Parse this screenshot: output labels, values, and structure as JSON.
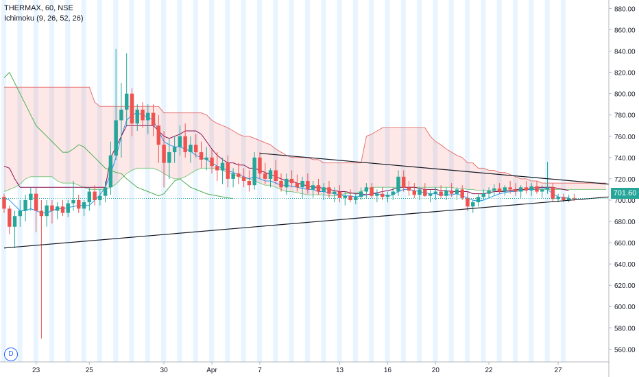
{
  "header": {
    "symbol_line": "THERMAX, 60, NSE",
    "indicator_line": "Ichimoku (9, 26, 52, 26)"
  },
  "badge": {
    "label": "D"
  },
  "price_tag": {
    "value": "701.60"
  },
  "colors": {
    "up": "#26a69a",
    "down": "#ef5350",
    "tenkan": "#2196f3",
    "kijun": "#880e4f",
    "chikou": "#4caf50",
    "spanA": "#81c784",
    "spanB": "#e57373",
    "cloudUp": "rgba(76,175,80,0.12)",
    "cloudDown": "rgba(244,67,54,0.12)",
    "session": "rgba(33,150,243,0.10)",
    "trendline": "#131722"
  },
  "chart_data": {
    "type": "candlestick",
    "ylim": [
      548,
      888
    ],
    "y_ticks": [
      "880.00",
      "860.00",
      "840.00",
      "820.00",
      "800.00",
      "780.00",
      "760.00",
      "740.00",
      "720.00",
      "700.00",
      "680.00",
      "660.00",
      "640.00",
      "620.00",
      "600.00",
      "580.00",
      "560.00"
    ],
    "x_ticks": [
      {
        "label": "23",
        "i": 6
      },
      {
        "label": "25",
        "i": 16
      },
      {
        "label": "30",
        "i": 30
      },
      {
        "label": "Apr",
        "i": 39
      },
      {
        "label": "7",
        "i": 48
      },
      {
        "label": "13",
        "i": 63
      },
      {
        "label": "16",
        "i": 72
      },
      {
        "label": "20",
        "i": 81
      },
      {
        "label": "22",
        "i": 91
      },
      {
        "label": "27",
        "i": 104
      }
    ],
    "last_price": 701.6,
    "candles": [
      [
        703,
        706,
        688,
        692
      ],
      [
        692,
        695,
        668,
        675
      ],
      [
        675,
        690,
        655,
        685
      ],
      [
        685,
        700,
        675,
        690
      ],
      [
        690,
        705,
        680,
        700
      ],
      [
        700,
        712,
        690,
        706
      ],
      [
        706,
        712,
        670,
        690
      ],
      [
        690,
        700,
        570,
        685
      ],
      [
        685,
        700,
        675,
        695
      ],
      [
        695,
        700,
        678,
        690
      ],
      [
        690,
        698,
        682,
        694
      ],
      [
        694,
        700,
        685,
        688
      ],
      [
        688,
        700,
        684,
        697
      ],
      [
        697,
        718,
        690,
        700
      ],
      [
        700,
        705,
        688,
        692
      ],
      [
        692,
        700,
        685,
        698
      ],
      [
        698,
        712,
        690,
        708
      ],
      [
        708,
        714,
        695,
        700
      ],
      [
        700,
        710,
        695,
        704
      ],
      [
        704,
        718,
        698,
        712
      ],
      [
        712,
        755,
        705,
        742
      ],
      [
        742,
        842,
        738,
        775
      ],
      [
        775,
        810,
        740,
        785
      ],
      [
        785,
        838,
        770,
        800
      ],
      [
        800,
        805,
        760,
        772
      ],
      [
        772,
        790,
        765,
        785
      ],
      [
        785,
        792,
        768,
        775
      ],
      [
        775,
        790,
        762,
        782
      ],
      [
        782,
        790,
        760,
        770
      ],
      [
        770,
        780,
        735,
        752
      ],
      [
        752,
        765,
        712,
        735
      ],
      [
        735,
        758,
        720,
        745
      ],
      [
        745,
        760,
        735,
        750
      ],
      [
        750,
        770,
        742,
        760
      ],
      [
        760,
        772,
        740,
        745
      ],
      [
        745,
        760,
        735,
        752
      ],
      [
        752,
        762,
        740,
        745
      ],
      [
        745,
        755,
        730,
        738
      ],
      [
        738,
        750,
        728,
        740
      ],
      [
        740,
        748,
        725,
        732
      ],
      [
        732,
        745,
        718,
        728
      ],
      [
        728,
        740,
        715,
        735
      ],
      [
        735,
        742,
        712,
        720
      ],
      [
        720,
        730,
        712,
        725
      ],
      [
        725,
        735,
        715,
        722
      ],
      [
        722,
        730,
        712,
        718
      ],
      [
        718,
        728,
        708,
        714
      ],
      [
        714,
        745,
        710,
        740
      ],
      [
        740,
        745,
        720,
        725
      ],
      [
        725,
        735,
        715,
        720
      ],
      [
        720,
        730,
        712,
        728
      ],
      [
        728,
        738,
        715,
        718
      ],
      [
        718,
        725,
        708,
        712
      ],
      [
        712,
        725,
        705,
        720
      ],
      [
        720,
        728,
        712,
        716
      ],
      [
        716,
        724,
        708,
        712
      ],
      [
        712,
        722,
        702,
        718
      ],
      [
        718,
        725,
        706,
        710
      ],
      [
        710,
        718,
        702,
        714
      ],
      [
        714,
        720,
        705,
        708
      ],
      [
        708,
        716,
        700,
        712
      ],
      [
        712,
        718,
        702,
        706
      ],
      [
        706,
        712,
        698,
        708
      ],
      [
        708,
        714,
        698,
        702
      ],
      [
        702,
        708,
        695,
        704
      ],
      [
        704,
        710,
        698,
        700
      ],
      [
        700,
        706,
        696,
        703
      ],
      [
        703,
        712,
        700,
        708
      ],
      [
        708,
        716,
        702,
        712
      ],
      [
        712,
        716,
        702,
        704
      ],
      [
        704,
        710,
        698,
        706
      ],
      [
        706,
        712,
        700,
        703
      ],
      [
        703,
        708,
        698,
        705
      ],
      [
        705,
        712,
        700,
        708
      ],
      [
        708,
        728,
        704,
        722
      ],
      [
        722,
        728,
        708,
        712
      ],
      [
        712,
        718,
        704,
        709
      ],
      [
        709,
        716,
        702,
        705
      ],
      [
        705,
        712,
        700,
        710
      ],
      [
        710,
        716,
        703,
        704
      ],
      [
        704,
        710,
        698,
        706
      ],
      [
        706,
        712,
        700,
        708
      ],
      [
        708,
        714,
        702,
        704
      ],
      [
        704,
        712,
        700,
        709
      ],
      [
        709,
        716,
        703,
        706
      ],
      [
        706,
        712,
        700,
        710
      ],
      [
        710,
        714,
        700,
        702
      ],
      [
        702,
        708,
        690,
        694
      ],
      [
        694,
        700,
        688,
        698
      ],
      [
        698,
        706,
        694,
        703
      ],
      [
        703,
        710,
        700,
        706
      ],
      [
        706,
        712,
        702,
        709
      ],
      [
        709,
        715,
        704,
        711
      ],
      [
        711,
        716,
        706,
        708
      ],
      [
        708,
        714,
        704,
        712
      ],
      [
        712,
        718,
        706,
        710
      ],
      [
        710,
        716,
        704,
        708
      ],
      [
        708,
        714,
        702,
        712
      ],
      [
        712,
        718,
        706,
        709
      ],
      [
        709,
        716,
        704,
        713
      ],
      [
        713,
        718,
        706,
        708
      ],
      [
        708,
        714,
        702,
        710
      ],
      [
        710,
        736,
        706,
        712
      ],
      [
        712,
        716,
        698,
        701
      ],
      [
        701,
        706,
        698,
        703
      ],
      [
        703,
        706,
        698,
        700
      ],
      [
        700,
        705,
        698,
        702
      ],
      [
        702,
        706,
        699,
        701.6
      ]
    ],
    "tenkan": [
      702,
      700,
      695,
      690,
      690,
      692,
      690,
      688,
      688,
      690,
      692,
      692,
      693,
      694,
      695,
      695,
      695,
      700,
      705,
      712,
      725,
      740,
      760,
      775,
      780,
      782,
      780,
      778,
      775,
      765,
      755,
      752,
      750,
      750,
      748,
      746,
      742,
      740,
      738,
      735,
      732,
      730,
      728,
      726,
      724,
      722,
      720,
      722,
      720,
      718,
      718,
      716,
      714,
      714,
      713,
      712,
      711,
      710,
      710,
      708,
      708,
      707,
      706,
      705,
      704,
      704,
      703,
      704,
      705,
      706,
      706,
      705,
      704,
      705,
      708,
      710,
      710,
      709,
      708,
      707,
      706,
      706,
      705,
      705,
      705,
      706,
      704,
      702,
      700,
      699,
      700,
      702,
      704,
      706,
      707,
      708,
      708,
      709,
      710,
      710,
      710,
      712,
      710,
      706,
      703,
      702,
      702
    ],
    "kijun": [
      732,
      730,
      720,
      712,
      712,
      712,
      712,
      712,
      712,
      712,
      712,
      712,
      712,
      712,
      712,
      712,
      712,
      712,
      712,
      712,
      740,
      750,
      760,
      770,
      770,
      770,
      770,
      770,
      770,
      765,
      760,
      758,
      760,
      762,
      765,
      765,
      765,
      762,
      755,
      748,
      742,
      738,
      735,
      735,
      733,
      733,
      730,
      730,
      728,
      726,
      724,
      722,
      720,
      718,
      718,
      716,
      715,
      713,
      712,
      712,
      711,
      710,
      709,
      708,
      708,
      707,
      706,
      706,
      705,
      706,
      707,
      708,
      709,
      710,
      712,
      712,
      712,
      712,
      711,
      710,
      710,
      710,
      709,
      709,
      708,
      708,
      708,
      708,
      706,
      706,
      706,
      707,
      708,
      708,
      708,
      709,
      710,
      710,
      710,
      711,
      712,
      712,
      712,
      712,
      711,
      710,
      709
    ],
    "chikou": [
      815,
      820,
      810,
      800,
      790,
      780,
      770,
      765,
      760,
      755,
      750,
      745,
      745,
      748,
      752,
      750,
      745,
      740,
      735,
      730,
      728,
      726,
      725,
      720,
      716,
      712,
      710,
      708,
      706,
      704,
      706,
      712,
      718,
      720,
      716,
      712,
      710,
      708,
      706,
      705,
      704,
      703,
      702,
      701.6
    ],
    "spanA": [
      708,
      710,
      712,
      715,
      720,
      722,
      722,
      722,
      722,
      722,
      718,
      716,
      716,
      716,
      714,
      712,
      710,
      710,
      710,
      710,
      712,
      715,
      720,
      725,
      728,
      730,
      730,
      730,
      730,
      728,
      725,
      722,
      720,
      720,
      722,
      725,
      728,
      730,
      730,
      730,
      730,
      728,
      726,
      724,
      722,
      720,
      720,
      718,
      716,
      714,
      714,
      712,
      710,
      708,
      708,
      707,
      706,
      705,
      705,
      705,
      705,
      704,
      704,
      705,
      706,
      706,
      707,
      708,
      710,
      712,
      712,
      712,
      712,
      712,
      712,
      712,
      712,
      712,
      712,
      712,
      712,
      712,
      712,
      712,
      712,
      711,
      711,
      710,
      710,
      709,
      709,
      709,
      709,
      709,
      709,
      709,
      709,
      709,
      710,
      710,
      710,
      710,
      710,
      710,
      710,
      710,
      710,
      710,
      710,
      710,
      710,
      710,
      710,
      710,
      710,
      710,
      710,
      710,
      710,
      710,
      710,
      710,
      710,
      710,
      710,
      710,
      710,
      710,
      710,
      710,
      710,
      710,
      710,
      710,
      710
    ],
    "spanB": [
      806,
      806,
      806,
      806,
      806,
      806,
      806,
      806,
      806,
      806,
      806,
      806,
      806,
      806,
      806,
      806,
      806,
      792,
      788,
      788,
      788,
      788,
      788,
      788,
      788,
      788,
      788,
      788,
      788,
      788,
      782,
      782,
      782,
      782,
      782,
      782,
      782,
      782,
      780,
      775,
      772,
      770,
      768,
      765,
      762,
      760,
      760,
      758,
      756,
      754,
      752,
      748,
      745,
      742,
      740,
      740,
      740,
      740,
      738,
      738,
      735,
      735,
      735,
      735,
      735,
      735,
      735,
      735,
      760,
      762,
      765,
      768,
      768,
      768,
      768,
      768,
      768,
      768,
      768,
      768,
      760,
      755,
      752,
      748,
      745,
      742,
      740,
      735,
      735,
      730,
      730,
      728,
      728,
      726,
      726,
      724,
      722,
      720,
      720,
      718,
      718,
      716,
      716,
      716,
      716,
      716,
      716,
      716,
      716,
      716,
      716,
      716,
      716,
      716,
      716,
      716,
      716,
      716,
      716,
      716,
      716,
      716,
      716,
      716,
      716,
      716,
      716,
      716,
      716,
      716,
      716,
      716,
      716
    ],
    "trendlines": [
      {
        "x1": 0,
        "y1": 654,
        "x2": 120,
        "y2": 716
      },
      {
        "x1": 48,
        "y1": 744,
        "x2": 120,
        "y2": 714
      },
      {
        "x1": 0,
        "y1": 807,
        "x2": 6,
        "y2": 807
      }
    ]
  }
}
